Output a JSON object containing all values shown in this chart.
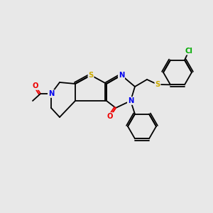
{
  "background_color": "#e8e8e8",
  "atom_colors": {
    "C": "#000000",
    "N": "#0000ee",
    "O": "#ee0000",
    "S": "#ccaa00",
    "Cl": "#00aa00"
  },
  "figsize": [
    3.0,
    3.0
  ],
  "dpi": 100
}
